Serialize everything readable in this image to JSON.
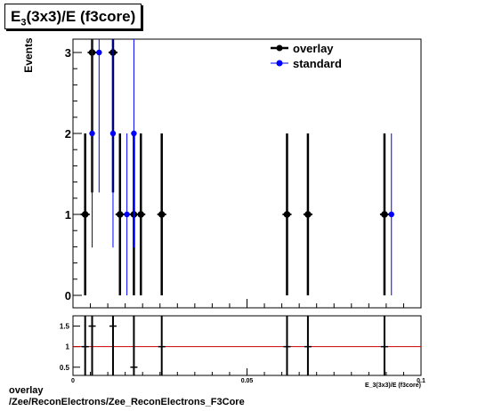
{
  "title": {
    "main": "E",
    "sub": "3",
    "rest": "(3x3)/E (f3core)"
  },
  "footer": {
    "line1": "overlay",
    "line2": "/Zee/ReconElectrons/Zee_ReconElectrons_F3Core"
  },
  "colors": {
    "overlay": "#000000",
    "standard": "#0000ff",
    "ratio_line": "#cc0000"
  },
  "chart_data": [
    {
      "type": "scatter",
      "title": "E3(3x3)/E (f3core)",
      "ylabel": "Events",
      "xlabel": "",
      "xlim": [
        0,
        0.1
      ],
      "ylim": [
        -0.1,
        3.2
      ],
      "yticks": [
        0,
        1,
        2,
        3
      ],
      "legend": {
        "position": "top-right",
        "entries": [
          "overlay",
          "standard"
        ]
      },
      "series": [
        {
          "name": "overlay",
          "x": [
            0.0035,
            0.0055,
            0.0115,
            0.0135,
            0.0175,
            0.0195,
            0.0255,
            0.0615,
            0.0675,
            0.0895
          ],
          "y": [
            1,
            3,
            3,
            1,
            1,
            1,
            1,
            1,
            1,
            1
          ],
          "yerr": [
            1,
            1.73,
            1.73,
            1,
            1,
            1,
            1,
            1,
            1,
            1
          ]
        },
        {
          "name": "standard",
          "x": [
            0.0055,
            0.0075,
            0.0115,
            0.0155,
            0.0175,
            0.0915
          ],
          "y": [
            2,
            3,
            2,
            1,
            2,
            1
          ],
          "yerr": [
            1.41,
            1.73,
            1.41,
            1,
            1.41,
            1
          ]
        }
      ]
    },
    {
      "type": "scatter",
      "xlabel": "E_3(3x3)/E (f3core)",
      "xlim": [
        0,
        0.1
      ],
      "ylim": [
        0.3,
        1.75
      ],
      "yticks": [
        0.5,
        1,
        1.5
      ],
      "xticks": [
        0,
        0.05,
        0.1
      ],
      "reference_line": 1,
      "series": [
        {
          "name": "ratio",
          "x": [
            0.0035,
            0.0055,
            0.0115,
            0.0175,
            0.0255,
            0.0615,
            0.0675,
            0.0895
          ],
          "y": [
            1,
            1.5,
            1.5,
            0.5,
            1,
            1,
            1,
            1
          ]
        }
      ]
    }
  ]
}
